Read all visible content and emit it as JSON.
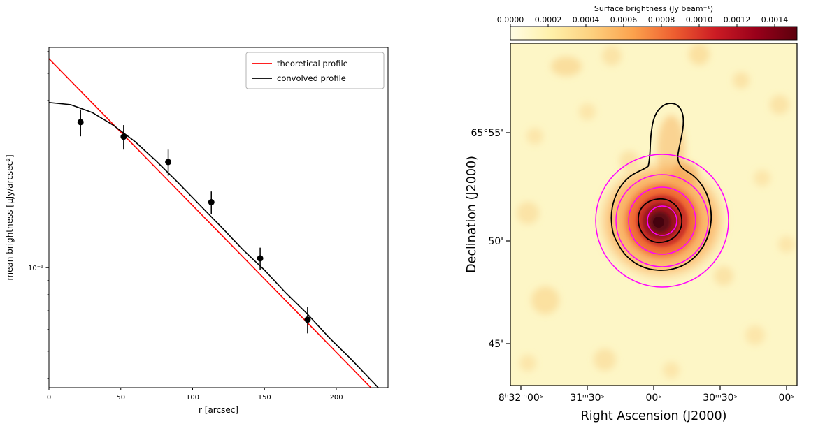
{
  "chart_data": [
    {
      "type": "line",
      "title": "",
      "xlabel": "r [arcsec]",
      "ylabel": "mean brightness [μJy/arcsec²]",
      "yscale": "log",
      "xlim": [
        0,
        236
      ],
      "ylim": [
        0.037,
        0.62
      ],
      "grid": false,
      "x_ticks": [
        0,
        50,
        100,
        150,
        200
      ],
      "y_major_tick": {
        "value": 0.1,
        "label": "10⁻¹"
      },
      "y_minor_ticks": [
        0.04,
        0.05,
        0.06,
        0.07,
        0.08,
        0.09,
        0.2,
        0.3,
        0.4,
        0.5,
        0.6
      ],
      "legend": {
        "position": "upper right",
        "entries": [
          {
            "label": "theoretical profile",
            "color": "#ff0000"
          },
          {
            "label": "convolved profile",
            "color": "#000000"
          }
        ]
      },
      "series": {
        "theoretical": {
          "name": "theoretical profile",
          "color": "#ff0000",
          "x": [
            0,
            236
          ],
          "y": [
            0.565,
            0.032
          ]
        },
        "convolved": {
          "name": "convolved profile",
          "color": "#000000",
          "x": [
            0,
            15,
            30,
            45,
            60,
            75,
            90,
            105,
            120,
            135,
            150,
            165,
            180,
            195,
            210,
            225,
            236
          ],
          "y": [
            0.393,
            0.386,
            0.362,
            0.325,
            0.284,
            0.241,
            0.202,
            0.168,
            0.14,
            0.116,
            0.098,
            0.081,
            0.068,
            0.056,
            0.047,
            0.039,
            0.034
          ]
        },
        "measurements": {
          "name": "measured points",
          "color": "#000000",
          "x": [
            22,
            52,
            83,
            113,
            147,
            180
          ],
          "y": [
            0.334,
            0.296,
            0.24,
            0.172,
            0.108,
            0.065
          ],
          "yerr": [
            0.037,
            0.03,
            0.026,
            0.016,
            0.01,
            0.007
          ]
        }
      }
    },
    {
      "type": "heatmap",
      "xlabel": "Right Ascension (J2000)",
      "ylabel": "Declination (J2000)",
      "x_tick_labels": [
        "8ʰ32ᵐ00ˢ",
        "31ᵐ30ˢ",
        "00ˢ",
        "30ᵐ30ˢ",
        "00ˢ"
      ],
      "y_tick_labels": [
        "65°55'",
        "50'",
        "45'"
      ],
      "colorbar": {
        "title": "Surface brightness (Jy beam⁻¹)",
        "orientation": "horizontal top",
        "tick_labels": [
          "0.0000",
          "0.0002",
          "0.0004",
          "0.0006",
          "0.0008",
          "0.0010",
          "0.0012",
          "0.0014"
        ],
        "vmin": 0.0,
        "vmax": 0.00152,
        "gradient": [
          "#fffde4",
          "#fef0a9",
          "#fdd07e",
          "#fca24d",
          "#ee5e30",
          "#cc1c24",
          "#99001a",
          "#5c000d"
        ]
      },
      "map": {
        "background_color": "#fdf6c6",
        "source_core_color": "#45020e",
        "description": "Diffuse radio source with bright central core and northern extension"
      },
      "overlays": {
        "circles_color": "#ff00ff",
        "circles_count": 4,
        "contours_color": "#000000",
        "contours_count": 2
      }
    }
  ]
}
